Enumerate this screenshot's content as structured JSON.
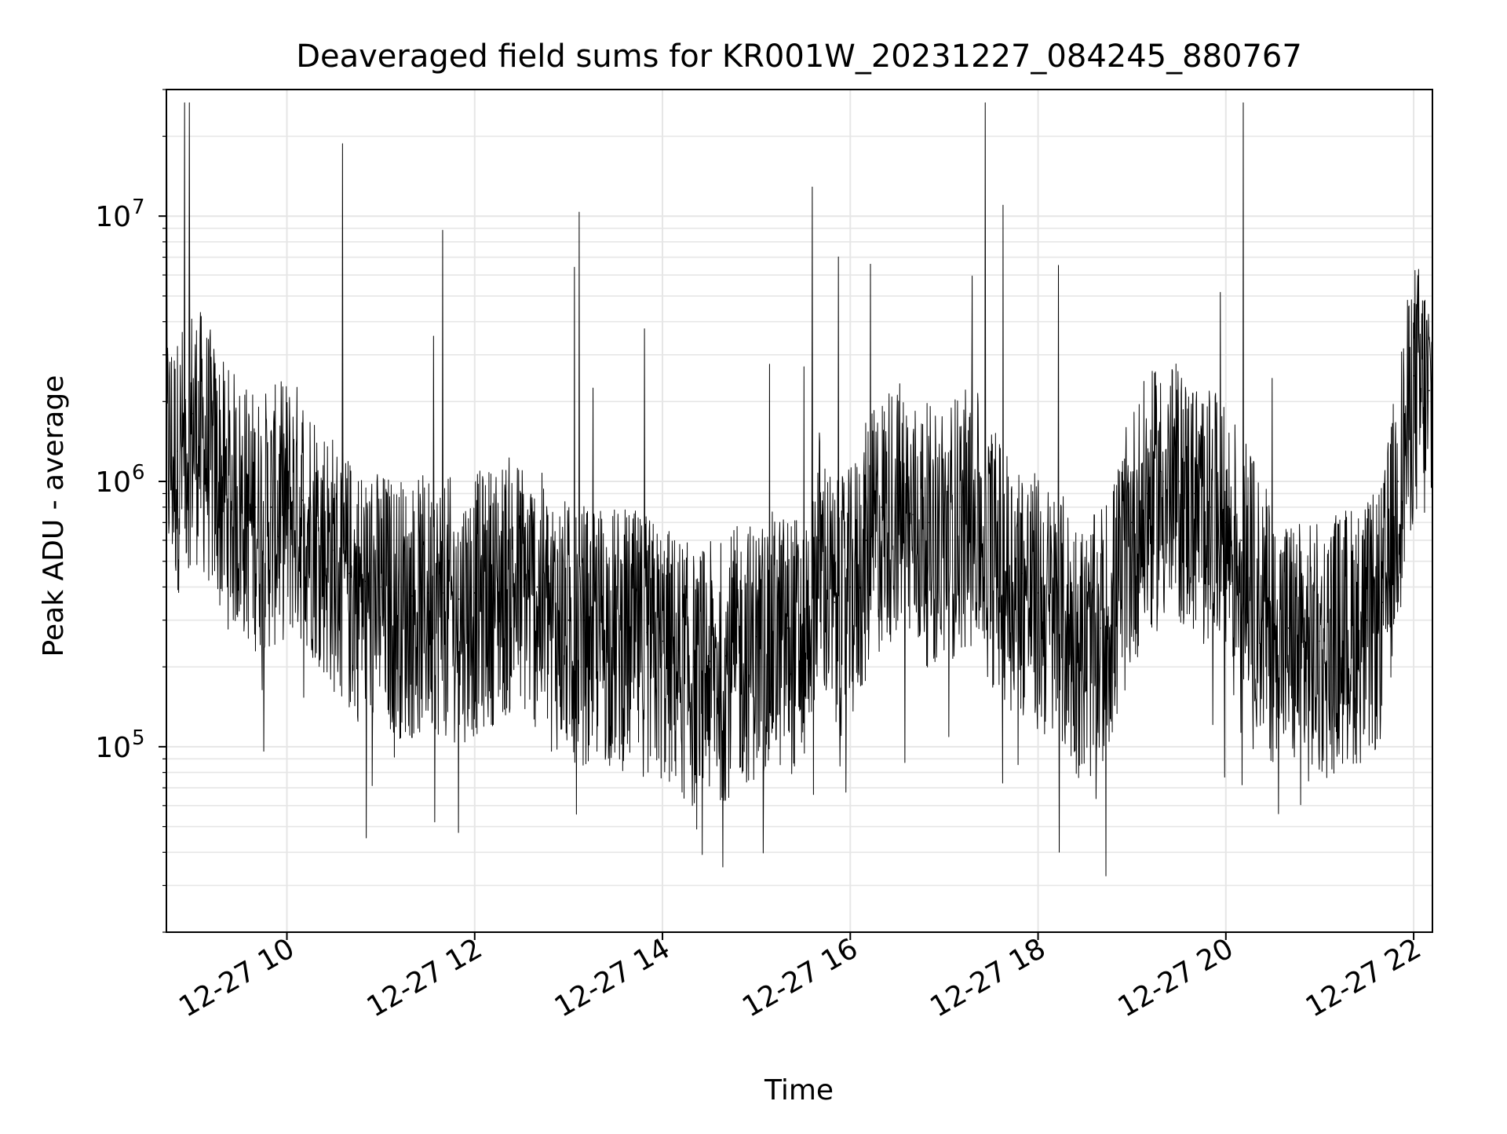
{
  "chart_data": {
    "type": "line",
    "title": "Deaveraged field sums for KR001W_20231227_084245_880767",
    "xlabel": "Time",
    "ylabel": "Peak ADU - average",
    "yscale": "log",
    "xlim": [
      "2023-12-27 08:43",
      "2023-12-27 22:12"
    ],
    "ylim": [
      20000,
      30000000
    ],
    "x_ticks": [
      "12-27 10",
      "12-27 12",
      "12-27 14",
      "12-27 16",
      "12-27 18",
      "12-27 20",
      "12-27 22"
    ],
    "y_ticks": [
      "10",
      "10",
      "10"
    ],
    "y_tick_exponents": [
      "5",
      "6",
      "7"
    ],
    "grid": true,
    "series": [
      {
        "color": "#000000",
        "x": [
          "08:43",
          "08:50",
          "09:00",
          "09:10",
          "09:20",
          "09:30",
          "09:40",
          "09:50",
          "10:00",
          "10:10",
          "10:20",
          "10:30",
          "10:40",
          "10:50",
          "11:00",
          "11:10",
          "11:20",
          "11:30",
          "11:40",
          "11:50",
          "12:00",
          "12:10",
          "12:20",
          "12:30",
          "12:40",
          "12:50",
          "13:00",
          "13:10",
          "13:20",
          "13:30",
          "13:40",
          "13:50",
          "14:00",
          "14:10",
          "14:20",
          "14:30",
          "14:40",
          "14:50",
          "15:00",
          "15:10",
          "15:20",
          "15:30",
          "15:40",
          "15:50",
          "16:00",
          "16:10",
          "16:20",
          "16:30",
          "16:40",
          "16:50",
          "17:00",
          "17:10",
          "17:20",
          "17:30",
          "17:40",
          "17:50",
          "18:00",
          "18:10",
          "18:20",
          "18:30",
          "18:40",
          "18:50",
          "19:00",
          "19:10",
          "19:20",
          "19:30",
          "19:40",
          "19:50",
          "20:00",
          "20:10",
          "20:20",
          "20:30",
          "20:40",
          "20:50",
          "21:00",
          "21:10",
          "21:20",
          "21:30",
          "21:40",
          "21:50",
          "22:00",
          "22:10",
          "22:12"
        ],
        "y": [
          1500000,
          1300000,
          1800000,
          1400000,
          1000000,
          900000,
          800000,
          800000,
          900000,
          850000,
          700000,
          550000,
          450000,
          420000,
          400000,
          380000,
          370000,
          380000,
          380000,
          360000,
          380000,
          420000,
          450000,
          450000,
          400000,
          350000,
          300000,
          300000,
          300000,
          290000,
          280000,
          270000,
          250000,
          230000,
          200000,
          210000,
          220000,
          250000,
          260000,
          280000,
          280000,
          270000,
          600000,
          350000,
          400000,
          600000,
          800000,
          900000,
          750000,
          700000,
          700000,
          800000,
          800000,
          600000,
          500000,
          450000,
          380000,
          350000,
          300000,
          250000,
          280000,
          400000,
          700000,
          900000,
          1000000,
          1000000,
          900000,
          800000,
          700000,
          600000,
          400000,
          300000,
          280000,
          250000,
          250000,
          280000,
          300000,
          300000,
          350000,
          1000000,
          2500000,
          2200000,
          2300000
        ]
      }
    ]
  }
}
